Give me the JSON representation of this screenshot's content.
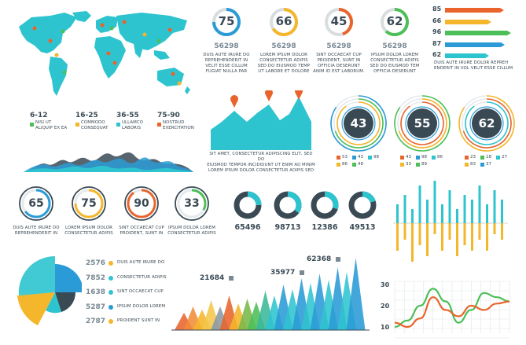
{
  "colors": {
    "teal": "#2ec4cf",
    "blue": "#2a9bd6",
    "orange": "#e8642c",
    "yellow": "#f4b62a",
    "green": "#4cbf58",
    "dark": "#3a4a55",
    "red": "#e03a3a"
  },
  "map": {
    "legend": [
      {
        "range": "6-12",
        "label": "NISI UT\nALIQUIP EX EA",
        "color": "#4cbf58"
      },
      {
        "range": "16-25",
        "label": "COMMODO\nCONSEQUAT",
        "color": "#f4b62a"
      },
      {
        "range": "36-55",
        "label": "ULLAMCO\nLABORIS",
        "color": "#2ec4cf"
      },
      {
        "range": "75-90",
        "label": "NOSTRUD\nEXERCITATION",
        "color": "#e8642c"
      }
    ]
  },
  "top_gauges": [
    {
      "value": "75",
      "number": "56298",
      "caption": "DUIS AUTE IRURE DO\nREPREHENDERIT IN\nVELIT ESSE CILLUM\nFUGIAT NULLA PAR",
      "color": "#2a9bd6",
      "pct": 0.75
    },
    {
      "value": "66",
      "number": "56298",
      "caption": "LOREM IPSUM DOLOR\nCONSECTETUR ADIPIS\nSED DO EIUSMOD TEMP\nUT LABORE ET DOLORE",
      "color": "#f4b62a",
      "pct": 0.66
    },
    {
      "value": "45",
      "number": "56298",
      "caption": "SINT OCCAECAT CUP\nPROIDENT, SUNT IN\nOFFICIA DESERUNT\nANIM ID EST LABORUM.",
      "color": "#e8642c",
      "pct": 0.45
    },
    {
      "value": "62",
      "number": "56298",
      "caption": "IPSUM DOLOR LOREM\nCONSECTETUR ADIPIS\nSED DO EIUSMOD TEM\nOFFICIA DESERUNT",
      "color": "#4cbf58",
      "pct": 0.62
    }
  ],
  "arrow_bars": {
    "items": [
      {
        "value": "85",
        "color": "#e8642c",
        "pct": 0.85
      },
      {
        "value": "66",
        "color": "#f4b62a",
        "pct": 0.66
      },
      {
        "value": "96",
        "color": "#4cbf58",
        "pct": 0.96
      },
      {
        "value": "87",
        "color": "#2a9bd6",
        "pct": 0.87
      },
      {
        "value": "62",
        "color": "#2ec4cf",
        "pct": 0.62
      }
    ],
    "caption": "DUIS AUTE IRURE DOLOR REPREH\nENDERIT IN VOL VELIT ESSE CILLUM"
  },
  "area_peaks": {
    "caption": "SIT AMET, CONSECTETUR ADIPISCING ELIT, SED DO\nEIUSMOD TEMPOR INCIDIDUNT UT ENIM AD MINIM\nLOREM IPSUM DOLOR  CONSECTETUR ADIPIS SED"
  },
  "ring_gauges": [
    {
      "value": "43",
      "legend": [
        {
          "n": "53",
          "c": "#e8642c"
        },
        {
          "n": "43",
          "c": "#2a9bd6"
        },
        {
          "n": "98",
          "c": "#2ec4cf"
        },
        {
          "n": "86",
          "c": "#f4b62a"
        },
        {
          "n": "48",
          "c": "#4cbf58"
        }
      ]
    },
    {
      "value": "55",
      "legend": [
        {
          "n": "43",
          "c": "#e8642c"
        },
        {
          "n": "98",
          "c": "#2a9bd6"
        },
        {
          "n": "86",
          "c": "#2ec4cf"
        },
        {
          "n": "33",
          "c": "#f4b62a"
        },
        {
          "n": "89",
          "c": "#4cbf58"
        }
      ]
    },
    {
      "value": "62",
      "legend": [
        {
          "n": "23",
          "c": "#e8642c"
        },
        {
          "n": "18",
          "c": "#4cbf58"
        },
        {
          "n": "27",
          "c": "#2ec4cf"
        },
        {
          "n": "83",
          "c": "#f4b62a"
        },
        {
          "n": "37",
          "c": "#2a9bd6"
        }
      ]
    }
  ],
  "mid_gauges": [
    {
      "value": "65",
      "caption": "DUIS AUTE IRURE DO\nREPREHENDERIT IN",
      "color": "#2a9bd6",
      "pct": 0.65
    },
    {
      "value": "75",
      "caption": "LOREM IPSUM DOLOR\nCONSECTETUR ADIPIS",
      "color": "#f4b62a",
      "pct": 0.75
    },
    {
      "value": "90",
      "caption": "SINT OCCAECAT CUP\nPROIDENT, SUNT IN",
      "color": "#e8642c",
      "pct": 0.9
    },
    {
      "value": "33",
      "caption": "IPSUM DOLOR LOREM\nCONSECTETUR ADIPIS",
      "color": "#4cbf58",
      "pct": 0.33
    }
  ],
  "donuts": [
    {
      "value": "65496",
      "pct": 0.25
    },
    {
      "value": "98713",
      "pct": 0.35
    },
    {
      "value": "12386",
      "pct": 0.3
    },
    {
      "value": "49513",
      "pct": 0.2
    }
  ],
  "polar": {
    "items": [
      {
        "value": "2576",
        "label": "DUIS AUTE IRURE DO",
        "color": "#f4b62a"
      },
      {
        "value": "7852",
        "label": "CONSECTETUR ADIPIS",
        "color": "#2ec4cf"
      },
      {
        "value": "1638",
        "label": "SINT OCCAECAT CUP",
        "color": "#2ec4cf"
      },
      {
        "value": "5287",
        "label": "IPSUM DOLOR LOREM",
        "color": "#2a9bd6"
      },
      {
        "value": "2787",
        "label": "PROIDENT SUNT IN",
        "color": "#f4b62a"
      }
    ]
  },
  "chart_data": [
    {
      "type": "area",
      "title": "",
      "series": [
        {
          "name": "",
          "values": [
            21684,
            35977,
            62368
          ]
        }
      ],
      "annotations": [
        "21684",
        "35977",
        "62368"
      ]
    },
    {
      "type": "line",
      "title": "",
      "yticks": [
        "30",
        "20",
        "10"
      ],
      "ylim": [
        10,
        30
      ],
      "grid": true,
      "series": [
        {
          "name": "",
          "color": "#4cbf58",
          "values": [
            10,
            13,
            20,
            28,
            22,
            12,
            18,
            26,
            24,
            22
          ]
        },
        {
          "name": "",
          "color": "#e8642c",
          "values": [
            12,
            10,
            14,
            24,
            18,
            15,
            20,
            18,
            21,
            22
          ]
        }
      ]
    },
    {
      "type": "bar",
      "title": "",
      "series": [
        {
          "name": "",
          "values": [
            4,
            6,
            3,
            8,
            5,
            9,
            4,
            7,
            3,
            6,
            5,
            8,
            4,
            7,
            5
          ]
        },
        {
          "name": "",
          "values": [
            -5,
            -3,
            -7,
            -4,
            -6,
            -2,
            -5,
            -3,
            -6,
            -4,
            -5,
            -3,
            -5,
            -2,
            -3
          ]
        }
      ]
    }
  ]
}
